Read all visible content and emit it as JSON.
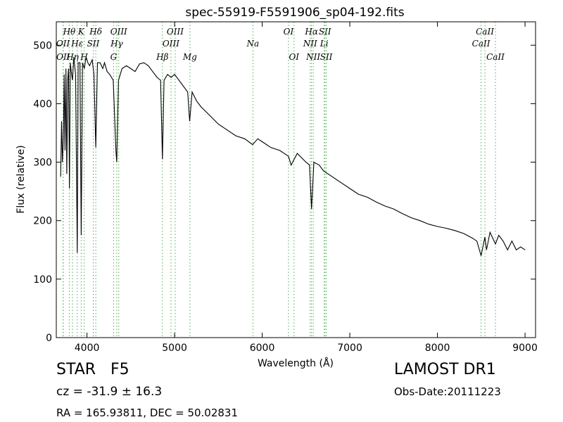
{
  "chart_data": {
    "type": "line",
    "title": "spec-55919-F5591906_sp04-192.fits",
    "xlabel": "Wavelength (Å)",
    "ylabel": "Flux (relative)",
    "xlim": [
      3650,
      9120
    ],
    "ylim": [
      0,
      540
    ],
    "xticks": [
      4000,
      5000,
      6000,
      7000,
      8000,
      9000
    ],
    "yticks": [
      0,
      100,
      200,
      300,
      400,
      500
    ],
    "grid": false,
    "colors": {
      "spectrum": "#000000",
      "line_markers": "#4caf50"
    },
    "series": [
      {
        "x": [
          3700,
          3710,
          3720,
          3730,
          3740,
          3750,
          3760,
          3770,
          3780,
          3790,
          3800,
          3810,
          3820,
          3835,
          3850,
          3870,
          3889,
          3900,
          3920,
          3934,
          3950,
          3970,
          3990,
          4010,
          4030,
          4060,
          4080,
          4101,
          4120,
          4150,
          4180,
          4200,
          4230,
          4260,
          4300,
          4330,
          4340,
          4360,
          4400,
          4450,
          4500,
          4550,
          4600,
          4650,
          4700,
          4750,
          4800,
          4840,
          4861,
          4880,
          4920,
          4960,
          5000,
          5050,
          5100,
          5150,
          5172,
          5200,
          5250,
          5300,
          5400,
          5500,
          5600,
          5700,
          5800,
          5890,
          5950,
          6000,
          6100,
          6200,
          6300,
          6330,
          6400,
          6500,
          6540,
          6563,
          6590,
          6650,
          6700,
          6800,
          6900,
          7000,
          7100,
          7200,
          7300,
          7400,
          7500,
          7600,
          7700,
          7800,
          7900,
          8000,
          8100,
          8200,
          8300,
          8400,
          8450,
          8498,
          8542,
          8560,
          8600,
          8662,
          8700,
          8750,
          8800,
          8850,
          8900,
          8950,
          9000
        ],
        "y": [
          275,
          370,
          300,
          340,
          450,
          320,
          460,
          280,
          440,
          460,
          255,
          470,
          455,
          440,
          480,
          450,
          145,
          470,
          470,
          175,
          470,
          460,
          480,
          470,
          465,
          475,
          450,
          325,
          470,
          470,
          460,
          470,
          455,
          450,
          440,
          320,
          300,
          440,
          460,
          465,
          460,
          455,
          468,
          470,
          465,
          455,
          445,
          440,
          305,
          440,
          450,
          445,
          450,
          440,
          430,
          420,
          370,
          420,
          405,
          395,
          380,
          365,
          355,
          345,
          340,
          330,
          340,
          335,
          325,
          320,
          310,
          295,
          315,
          300,
          295,
          220,
          300,
          295,
          285,
          275,
          265,
          255,
          245,
          240,
          232,
          225,
          220,
          212,
          205,
          200,
          194,
          190,
          187,
          183,
          178,
          170,
          165,
          140,
          172,
          150,
          180,
          160,
          175,
          165,
          150,
          165,
          150,
          155,
          150
        ]
      }
    ],
    "line_markers": [
      {
        "name": "Hθ",
        "wl": 3798,
        "row": 1
      },
      {
        "name": "OII",
        "wl": 3727,
        "row": 2
      },
      {
        "name": "OII",
        "wl": 3729,
        "row": 3
      },
      {
        "name": "Hη",
        "wl": 3835,
        "row": 3
      },
      {
        "name": "Hε",
        "wl": 3889,
        "row": 2
      },
      {
        "name": "K",
        "wl": 3934,
        "row": 1
      },
      {
        "name": "H",
        "wl": 3968,
        "row": 3
      },
      {
        "name": "SII",
        "wl": 4072,
        "row": 2
      },
      {
        "name": "Hδ",
        "wl": 4101,
        "row": 1
      },
      {
        "name": "OIII",
        "wl": 4363,
        "row": 1
      },
      {
        "name": "Hγ",
        "wl": 4340,
        "row": 2
      },
      {
        "name": "G",
        "wl": 4304,
        "row": 3
      },
      {
        "name": "OIII",
        "wl": 5007,
        "row": 1
      },
      {
        "name": "OIII",
        "wl": 4959,
        "row": 2
      },
      {
        "name": "Hβ",
        "wl": 4861,
        "row": 3
      },
      {
        "name": "Mg",
        "wl": 5175,
        "row": 3
      },
      {
        "name": "Na",
        "wl": 5894,
        "row": 2
      },
      {
        "name": "OI",
        "wl": 6300,
        "row": 1
      },
      {
        "name": "OI",
        "wl": 6363,
        "row": 3
      },
      {
        "name": "Hα",
        "wl": 6563,
        "row": 1
      },
      {
        "name": "SII",
        "wl": 6716,
        "row": 1
      },
      {
        "name": "NII",
        "wl": 6548,
        "row": 2
      },
      {
        "name": "Li",
        "wl": 6708,
        "row": 2
      },
      {
        "name": "NII",
        "wl": 6583,
        "row": 3
      },
      {
        "name": "SII",
        "wl": 6731,
        "row": 3
      },
      {
        "name": "CaII",
        "wl": 8542,
        "row": 1
      },
      {
        "name": "CaII",
        "wl": 8498,
        "row": 2
      },
      {
        "name": "CaII",
        "wl": 8662,
        "row": 3
      }
    ]
  },
  "info": {
    "class_label": "STAR",
    "subclass_label": "F5",
    "redshift": "cz = -31.9 ± 16.3",
    "coords": "RA = 165.93811, DEC = 50.02831",
    "survey": "LAMOST DR1",
    "obs_date": "Obs-Date:20111223"
  }
}
